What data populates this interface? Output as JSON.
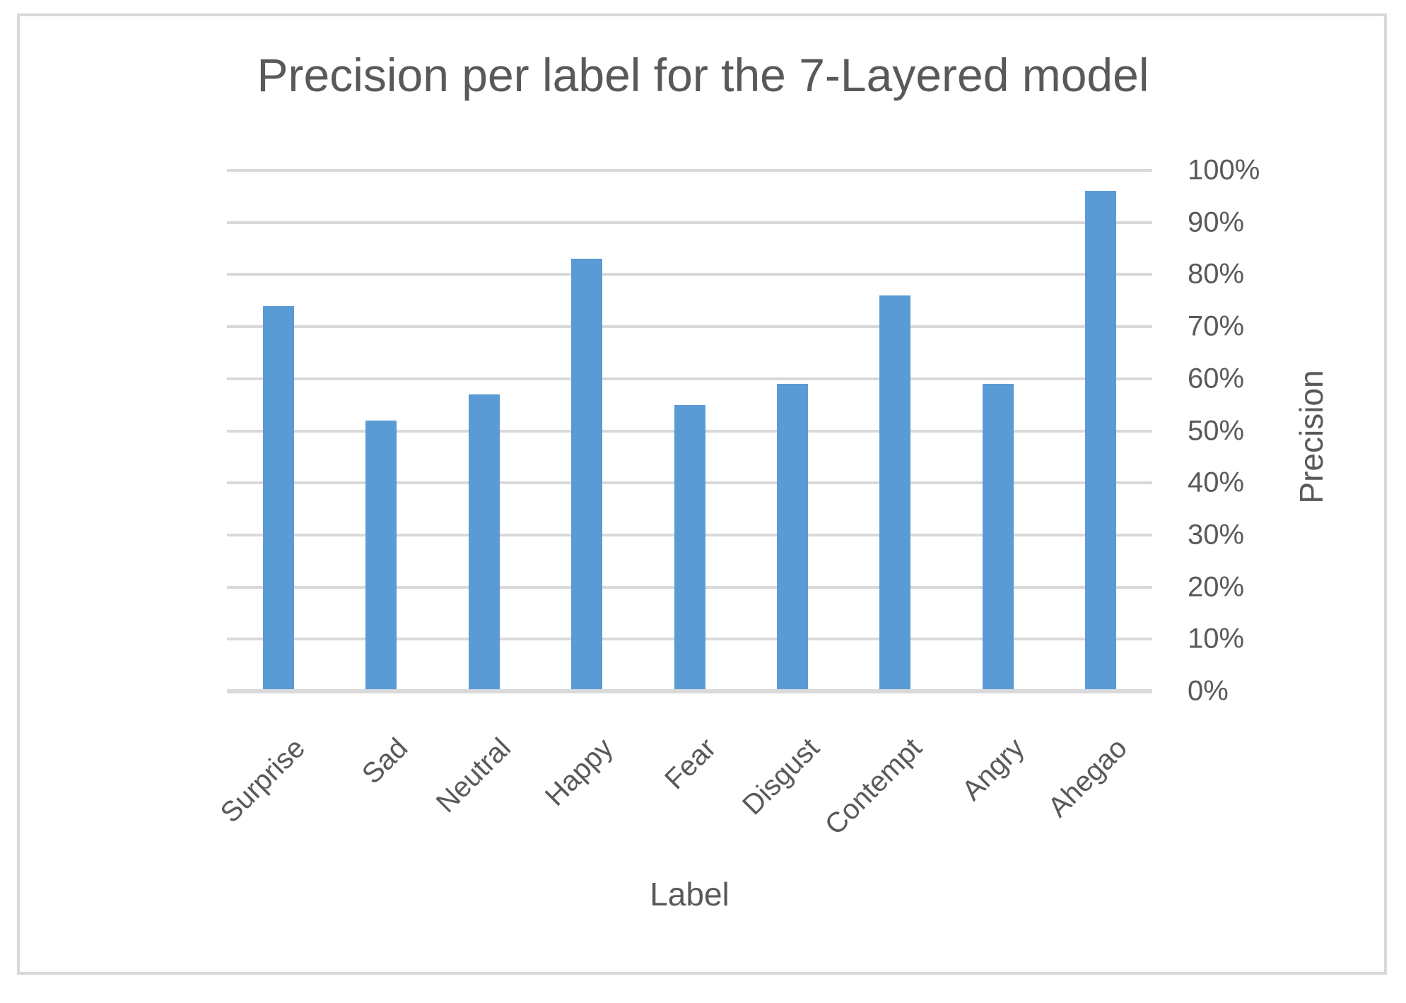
{
  "chart_data": {
    "type": "bar",
    "title": "Precision per label for the 7-Layered model",
    "xlabel": "Label",
    "ylabel": "Precision",
    "categories": [
      "Surprise",
      "Sad",
      "Neutral",
      "Happy",
      "Fear",
      "Disgust",
      "Contempt",
      "Angry",
      "Ahegao"
    ],
    "values": [
      74,
      52,
      57,
      83,
      55,
      59,
      76,
      59,
      96
    ],
    "value_unit": "percent",
    "ylim": [
      0,
      100
    ],
    "yticks": [
      0,
      10,
      20,
      30,
      40,
      50,
      60,
      70,
      80,
      90,
      100
    ],
    "ytick_labels": [
      "0%",
      "10%",
      "20%",
      "30%",
      "40%",
      "50%",
      "60%",
      "70%",
      "80%",
      "90%",
      "100%"
    ],
    "grid": "horizontal-major",
    "legend": "none",
    "colors": {
      "bar": "#5B9BD5",
      "gridline": "#D9D9D9",
      "axis_line": "#D9D9D9",
      "text": "#595959",
      "chart_border": "#D9D9D9",
      "background": "#FFFFFF"
    }
  }
}
